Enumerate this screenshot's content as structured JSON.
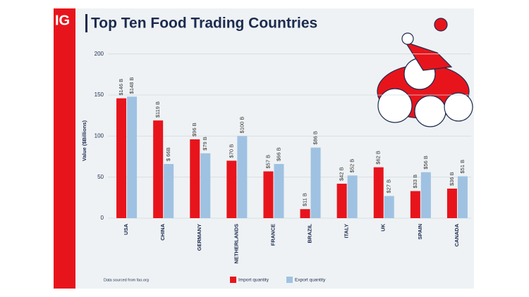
{
  "logo": "IG",
  "chart_data": {
    "type": "bar",
    "title": "Top Ten Food Trading Countries",
    "ylabel": "Value ($Billions)",
    "source": "Data sourced from fao.org",
    "categories": [
      "USA",
      "CHINA",
      "GERMANY",
      "NETHERLANDS",
      "FRANCE",
      "BRAZIL",
      "ITALY",
      "UK",
      "SPAIN",
      "CANADA"
    ],
    "series": [
      {
        "name": "Import quantity",
        "color": "#e8141c",
        "values": [
          146,
          119,
          96,
          70,
          57,
          11,
          42,
          62,
          33,
          36
        ],
        "value_labels": [
          "$146 B",
          "$119 B",
          "$96 B",
          "$70 B",
          "$57 B",
          "$11 B",
          "$42 B",
          "$62 B",
          "$33 B",
          "$36 B"
        ]
      },
      {
        "name": "Export quantity",
        "color": "#9fc2e2",
        "values": [
          148,
          66,
          79,
          100,
          66,
          86,
          52,
          27,
          56,
          51
        ],
        "value_labels": [
          "$148 B",
          "$ 66B",
          "$79 B",
          "$100 B",
          "$66 B",
          "$86 B",
          "$52 B",
          "$27 B",
          "$56 B",
          "$51 B"
        ]
      }
    ],
    "ylim": [
      0,
      210
    ],
    "yticks": [
      0,
      50,
      100,
      150,
      200
    ],
    "grid": true
  }
}
